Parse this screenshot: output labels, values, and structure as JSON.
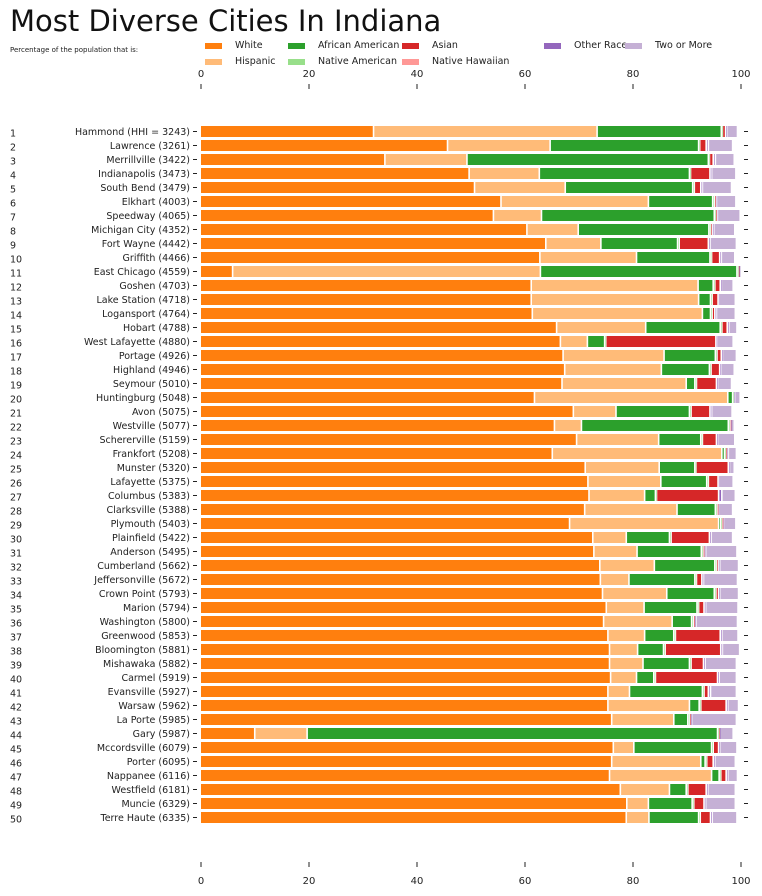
{
  "chart_data": {
    "type": "bar",
    "orientation": "horizontal-stacked",
    "title": "Most Diverse Cities In Indiana",
    "subtitle": "Percentage of the population that is:",
    "xlabel": "",
    "ylabel": "",
    "xlim": [
      0,
      100
    ],
    "xticks": [
      0,
      20,
      40,
      60,
      80,
      100
    ],
    "grid": false,
    "legend_placement": "top",
    "series": [
      {
        "name": "White",
        "color": "#ff7f0e"
      },
      {
        "name": "Hispanic",
        "color": "#ffbb78"
      },
      {
        "name": "African American",
        "color": "#2ca02c"
      },
      {
        "name": "Native American",
        "color": "#98df8a"
      },
      {
        "name": "Asian",
        "color": "#d62728"
      },
      {
        "name": "Native Hawaiian",
        "color": "#ff9896"
      },
      {
        "name": "Other Race",
        "color": "#9467bd"
      },
      {
        "name": "Two or More",
        "color": "#c5b0d5"
      }
    ],
    "legend_order": [
      "White",
      "Hispanic",
      "African American",
      "Native American",
      "Asian",
      "Native Hawaiian",
      "Other Race",
      "Two or More"
    ],
    "categories": [
      {
        "rank": "1",
        "label": "Hammond (HHI = 3243)",
        "values": [
          32.1,
          41.4,
          23.0,
          0.2,
          0.6,
          0.0,
          0.2,
          2.0
        ]
      },
      {
        "rank": "2",
        "label": "Lawrence (3261)",
        "values": [
          45.8,
          19.0,
          27.5,
          0.2,
          1.2,
          0.0,
          0.4,
          4.5
        ]
      },
      {
        "rank": "3",
        "label": "Merrillville (3422)",
        "values": [
          34.2,
          15.2,
          44.7,
          0.2,
          0.7,
          0.0,
          0.4,
          3.5
        ]
      },
      {
        "rank": "4",
        "label": "Indianapolis (3473)",
        "values": [
          49.8,
          13.0,
          27.8,
          0.2,
          3.6,
          0.0,
          0.3,
          4.5
        ]
      },
      {
        "rank": "5",
        "label": "South Bend (3479)",
        "values": [
          50.8,
          16.8,
          23.6,
          0.3,
          1.2,
          0.0,
          0.3,
          5.4
        ]
      },
      {
        "rank": "6",
        "label": "Elkhart (4003)",
        "values": [
          55.7,
          27.3,
          11.9,
          0.3,
          0.3,
          0.0,
          0.2,
          3.5
        ]
      },
      {
        "rank": "7",
        "label": "Speedway (4065)",
        "values": [
          54.3,
          8.9,
          32.0,
          0.2,
          0.3,
          0.0,
          0.2,
          4.1
        ]
      },
      {
        "rank": "8",
        "label": "Michigan City (4352)",
        "values": [
          60.5,
          9.5,
          24.2,
          0.3,
          0.3,
          0.0,
          0.3,
          3.9
        ]
      },
      {
        "rank": "9",
        "label": "Fort Wayne (4442)",
        "values": [
          64.0,
          10.2,
          14.2,
          0.3,
          5.4,
          0.0,
          0.3,
          4.9
        ]
      },
      {
        "rank": "10",
        "label": "Griffith (4466)",
        "values": [
          62.9,
          17.9,
          13.6,
          0.3,
          1.5,
          0.0,
          0.3,
          2.5
        ]
      },
      {
        "rank": "11",
        "label": "East Chicago (4559)",
        "values": [
          6.0,
          57.0,
          36.4,
          0.2,
          0.1,
          0.0,
          0.1,
          0.2
        ]
      },
      {
        "rank": "12",
        "label": "Goshen (4703)",
        "values": [
          61.3,
          30.9,
          2.8,
          0.3,
          1.0,
          0.0,
          0.2,
          2.2
        ]
      },
      {
        "rank": "13",
        "label": "Lake Station (4718)",
        "values": [
          61.3,
          31.0,
          2.2,
          0.3,
          1.1,
          0.0,
          0.2,
          3.0
        ]
      },
      {
        "rank": "14",
        "label": "Logansport (4764)",
        "values": [
          61.5,
          31.5,
          1.5,
          0.3,
          0.5,
          0.0,
          0.3,
          3.5
        ]
      },
      {
        "rank": "15",
        "label": "Hobart (4788)",
        "values": [
          66.0,
          16.5,
          13.8,
          0.3,
          1.0,
          0.0,
          0.3,
          1.5
        ]
      },
      {
        "rank": "16",
        "label": "West Lafayette (4880)",
        "values": [
          66.7,
          5.0,
          3.2,
          0.2,
          20.4,
          0.0,
          0.2,
          3.0
        ]
      },
      {
        "rank": "17",
        "label": "Portage (4926)",
        "values": [
          67.2,
          18.7,
          9.5,
          0.3,
          0.8,
          0.0,
          0.2,
          2.6
        ]
      },
      {
        "rank": "18",
        "label": "Highland (4946)",
        "values": [
          67.5,
          17.9,
          8.9,
          0.3,
          1.6,
          0.0,
          0.2,
          2.5
        ]
      },
      {
        "rank": "19",
        "label": "Seymour (5010)",
        "values": [
          67.0,
          23.0,
          1.6,
          0.3,
          3.7,
          0.0,
          0.2,
          2.6
        ]
      },
      {
        "rank": "20",
        "label": "Huntingburg (5048)",
        "values": [
          61.9,
          35.8,
          0.9,
          0.2,
          0.0,
          0.0,
          0.2,
          1.0
        ]
      },
      {
        "rank": "21",
        "label": "Avon (5075)",
        "values": [
          69.1,
          7.9,
          13.6,
          0.3,
          3.5,
          0.0,
          0.3,
          3.8
        ]
      },
      {
        "rank": "22",
        "label": "Westville (5077)",
        "values": [
          65.6,
          5.0,
          27.2,
          0.3,
          0.1,
          0.0,
          0.1,
          0.6
        ]
      },
      {
        "rank": "23",
        "label": "Schererville (5159)",
        "values": [
          69.7,
          15.2,
          7.8,
          0.3,
          2.6,
          0.0,
          0.2,
          3.2
        ]
      },
      {
        "rank": "24",
        "label": "Frankfort (5208)",
        "values": [
          65.2,
          31.4,
          0.5,
          0.2,
          0.2,
          0.0,
          0.3,
          1.5
        ]
      },
      {
        "rank": "25",
        "label": "Munster (5320)",
        "values": [
          71.3,
          13.7,
          6.6,
          0.2,
          6.0,
          0.0,
          0.2,
          0.9
        ]
      },
      {
        "rank": "26",
        "label": "Lafayette (5375)",
        "values": [
          71.8,
          13.5,
          8.5,
          0.3,
          1.8,
          0.0,
          0.2,
          2.6
        ]
      },
      {
        "rank": "27",
        "label": "Columbus (5383)",
        "values": [
          72.0,
          10.3,
          2.0,
          0.2,
          11.5,
          0.0,
          0.6,
          2.5
        ]
      },
      {
        "rank": "28",
        "label": "Clarksville (5388)",
        "values": [
          71.2,
          17.1,
          7.1,
          0.3,
          0.2,
          0.0,
          0.2,
          2.5
        ]
      },
      {
        "rank": "29",
        "label": "Plymouth (5403)",
        "values": [
          68.4,
          27.6,
          0.3,
          0.3,
          0.2,
          0.0,
          0.2,
          2.2
        ]
      },
      {
        "rank": "30",
        "label": "Plainfield (5422)",
        "values": [
          72.7,
          6.2,
          8.0,
          0.3,
          7.1,
          0.0,
          0.3,
          4.0
        ]
      },
      {
        "rank": "31",
        "label": "Anderson (5495)",
        "values": [
          72.9,
          8.0,
          11.9,
          0.3,
          0.2,
          0.0,
          0.3,
          5.8
        ]
      },
      {
        "rank": "32",
        "label": "Cumberland (5662)",
        "values": [
          74.0,
          10.1,
          11.2,
          0.3,
          0.3,
          0.0,
          0.3,
          3.5
        ]
      },
      {
        "rank": "33",
        "label": "Jeffersonville (5672)",
        "values": [
          74.1,
          5.3,
          12.2,
          0.3,
          1.0,
          0.0,
          0.3,
          6.3
        ]
      },
      {
        "rank": "34",
        "label": "Crown Point (5793)",
        "values": [
          74.5,
          11.9,
          8.8,
          0.3,
          0.5,
          0.0,
          0.2,
          3.5
        ]
      },
      {
        "rank": "35",
        "label": "Marion (5794)",
        "values": [
          75.2,
          7.0,
          9.8,
          0.3,
          1.0,
          0.0,
          0.3,
          6.0
        ]
      },
      {
        "rank": "36",
        "label": "Washington (5800)",
        "values": [
          74.7,
          12.7,
          3.6,
          0.3,
          0.2,
          0.0,
          0.3,
          7.7
        ]
      },
      {
        "rank": "37",
        "label": "Greenwood (5853)",
        "values": [
          75.5,
          6.8,
          5.4,
          0.3,
          8.3,
          0.0,
          0.3,
          3.0
        ]
      },
      {
        "rank": "38",
        "label": "Bloomington (5881)",
        "values": [
          75.8,
          5.2,
          4.8,
          0.3,
          10.3,
          0.0,
          0.3,
          3.2
        ]
      },
      {
        "rank": "39",
        "label": "Mishawaka (5882)",
        "values": [
          75.8,
          6.2,
          8.6,
          0.3,
          2.3,
          0.0,
          0.3,
          5.8
        ]
      },
      {
        "rank": "40",
        "label": "Carmel (5919)",
        "values": [
          76.0,
          4.8,
          3.2,
          0.3,
          11.5,
          0.0,
          0.3,
          3.2
        ]
      },
      {
        "rank": "41",
        "label": "Evansville (5927)",
        "values": [
          75.5,
          4.0,
          13.5,
          0.3,
          0.8,
          0.0,
          0.4,
          4.8
        ]
      },
      {
        "rank": "42",
        "label": "Warsaw (5962)",
        "values": [
          75.5,
          15.1,
          1.8,
          0.3,
          4.7,
          0.0,
          0.3,
          2.0
        ]
      },
      {
        "rank": "43",
        "label": "La Porte (5985)",
        "values": [
          76.2,
          11.5,
          2.6,
          0.3,
          0.2,
          0.0,
          0.2,
          8.3
        ]
      },
      {
        "rank": "44",
        "label": "Gary (5987)",
        "values": [
          10.1,
          9.7,
          76.0,
          0.2,
          0.1,
          0.0,
          0.1,
          2.5
        ]
      },
      {
        "rank": "45",
        "label": "Mccordsville (6079)",
        "values": [
          76.5,
          3.8,
          14.4,
          0.3,
          1.0,
          0.0,
          0.2,
          3.2
        ]
      },
      {
        "rank": "46",
        "label": "Porter (6095)",
        "values": [
          76.2,
          16.5,
          0.8,
          0.3,
          1.2,
          0.0,
          0.3,
          3.8
        ]
      },
      {
        "rank": "47",
        "label": "Nappanee (6116)",
        "values": [
          75.8,
          18.9,
          1.4,
          0.3,
          1.0,
          0.0,
          0.3,
          1.8
        ]
      },
      {
        "rank": "48",
        "label": "Westfield (6181)",
        "values": [
          77.8,
          9.1,
          3.1,
          0.3,
          3.4,
          0.0,
          0.3,
          5.1
        ]
      },
      {
        "rank": "49",
        "label": "Muncie (6329)",
        "values": [
          79.0,
          4.0,
          8.1,
          0.3,
          1.9,
          0.0,
          0.3,
          5.5
        ]
      },
      {
        "rank": "50",
        "label": "Terre Haute (6335)",
        "values": [
          78.9,
          4.2,
          9.2,
          0.3,
          1.9,
          0.0,
          0.3,
          4.6
        ]
      }
    ]
  }
}
